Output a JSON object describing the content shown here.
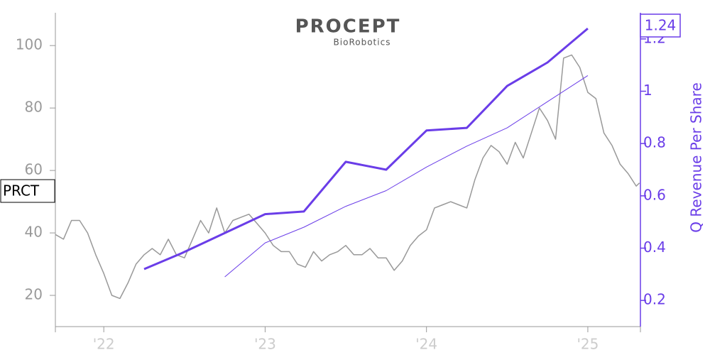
{
  "chart_data": {
    "type": "line",
    "logo": "PROCEPT",
    "logo_sub": "BioRobotics",
    "ticker": "PRCT",
    "y2_label": "Q Revenue Per Share",
    "xlim": [
      2021.7,
      2025.326
    ],
    "xticks": [
      {
        "value": 2022,
        "label": "'22"
      },
      {
        "value": 2023,
        "label": "'23"
      },
      {
        "value": 2024,
        "label": "'24"
      },
      {
        "value": 2025,
        "label": "'25"
      }
    ],
    "ylim": [
      10,
      110.5
    ],
    "yticks": [
      20,
      40,
      60,
      80,
      100
    ],
    "y2lim": [
      0.1,
      1.3
    ],
    "y2ticks": [
      0.2,
      0.4,
      0.6,
      0.8,
      1.0,
      1.2
    ],
    "axis_color": "#999999",
    "y2_color": "#6a3de8",
    "series": [
      {
        "color": "#999999",
        "width": 1.5,
        "x": [
          2021.7,
          2021.75,
          2021.8,
          2021.85,
          2021.9,
          2021.95,
          2022.0,
          2022.05,
          2022.1,
          2022.15,
          2022.2,
          2022.25,
          2022.3,
          2022.35,
          2022.4,
          2022.45,
          2022.5,
          2022.55,
          2022.6,
          2022.65,
          2022.7,
          2022.75,
          2022.8,
          2022.85,
          2022.9,
          2022.95,
          2023.0,
          2023.05,
          2023.1,
          2023.15,
          2023.2,
          2023.25,
          2023.3,
          2023.35,
          2023.4,
          2023.45,
          2023.5,
          2023.55,
          2023.6,
          2023.65,
          2023.7,
          2023.75,
          2023.8,
          2023.85,
          2023.9,
          2023.95,
          2024.0,
          2024.05,
          2024.1,
          2024.15,
          2024.2,
          2024.25,
          2024.3,
          2024.35,
          2024.4,
          2024.45,
          2024.5,
          2024.55,
          2024.6,
          2024.65,
          2024.7,
          2024.75,
          2024.8,
          2024.85,
          2024.9,
          2024.95,
          2025.0,
          2025.05,
          2025.1,
          2025.15,
          2025.2,
          2025.25,
          2025.3,
          2025.32
        ],
        "values": [
          39.5,
          38,
          44,
          44,
          40,
          33,
          27,
          20,
          19,
          24,
          30,
          33,
          35,
          33,
          38,
          33,
          32,
          38,
          44,
          40,
          48,
          40,
          44,
          45,
          46,
          43,
          40,
          36,
          34,
          34,
          30,
          29,
          34,
          31,
          33,
          34,
          36,
          33,
          33,
          35,
          32,
          32,
          28,
          31,
          36,
          39,
          41,
          48,
          49,
          50,
          49,
          48,
          57,
          64,
          68,
          66,
          62,
          69,
          64,
          72,
          80,
          76,
          70,
          96,
          97,
          93,
          85,
          83,
          72,
          68,
          62,
          59,
          55,
          56
        ]
      },
      {
        "color": "#6a3de8",
        "width": 3,
        "axis": "y2",
        "x": [
          2022.25,
          2022.48,
          2023.0,
          2023.24,
          2023.5,
          2023.75,
          2024.0,
          2024.25,
          2024.5,
          2024.75,
          2025.0
        ],
        "values": [
          0.32,
          0.38,
          0.53,
          0.54,
          0.73,
          0.7,
          0.85,
          0.86,
          1.02,
          1.11,
          1.24
        ]
      },
      {
        "color": "#6a3de8",
        "width": 1,
        "axis": "y2",
        "x": [
          2022.75,
          2023.0,
          2023.24,
          2023.5,
          2023.75,
          2024.0,
          2024.25,
          2024.5,
          2024.75,
          2025.0
        ],
        "values": [
          0.29,
          0.42,
          0.48,
          0.56,
          0.62,
          0.71,
          0.79,
          0.86,
          0.96,
          1.06
        ]
      }
    ]
  }
}
